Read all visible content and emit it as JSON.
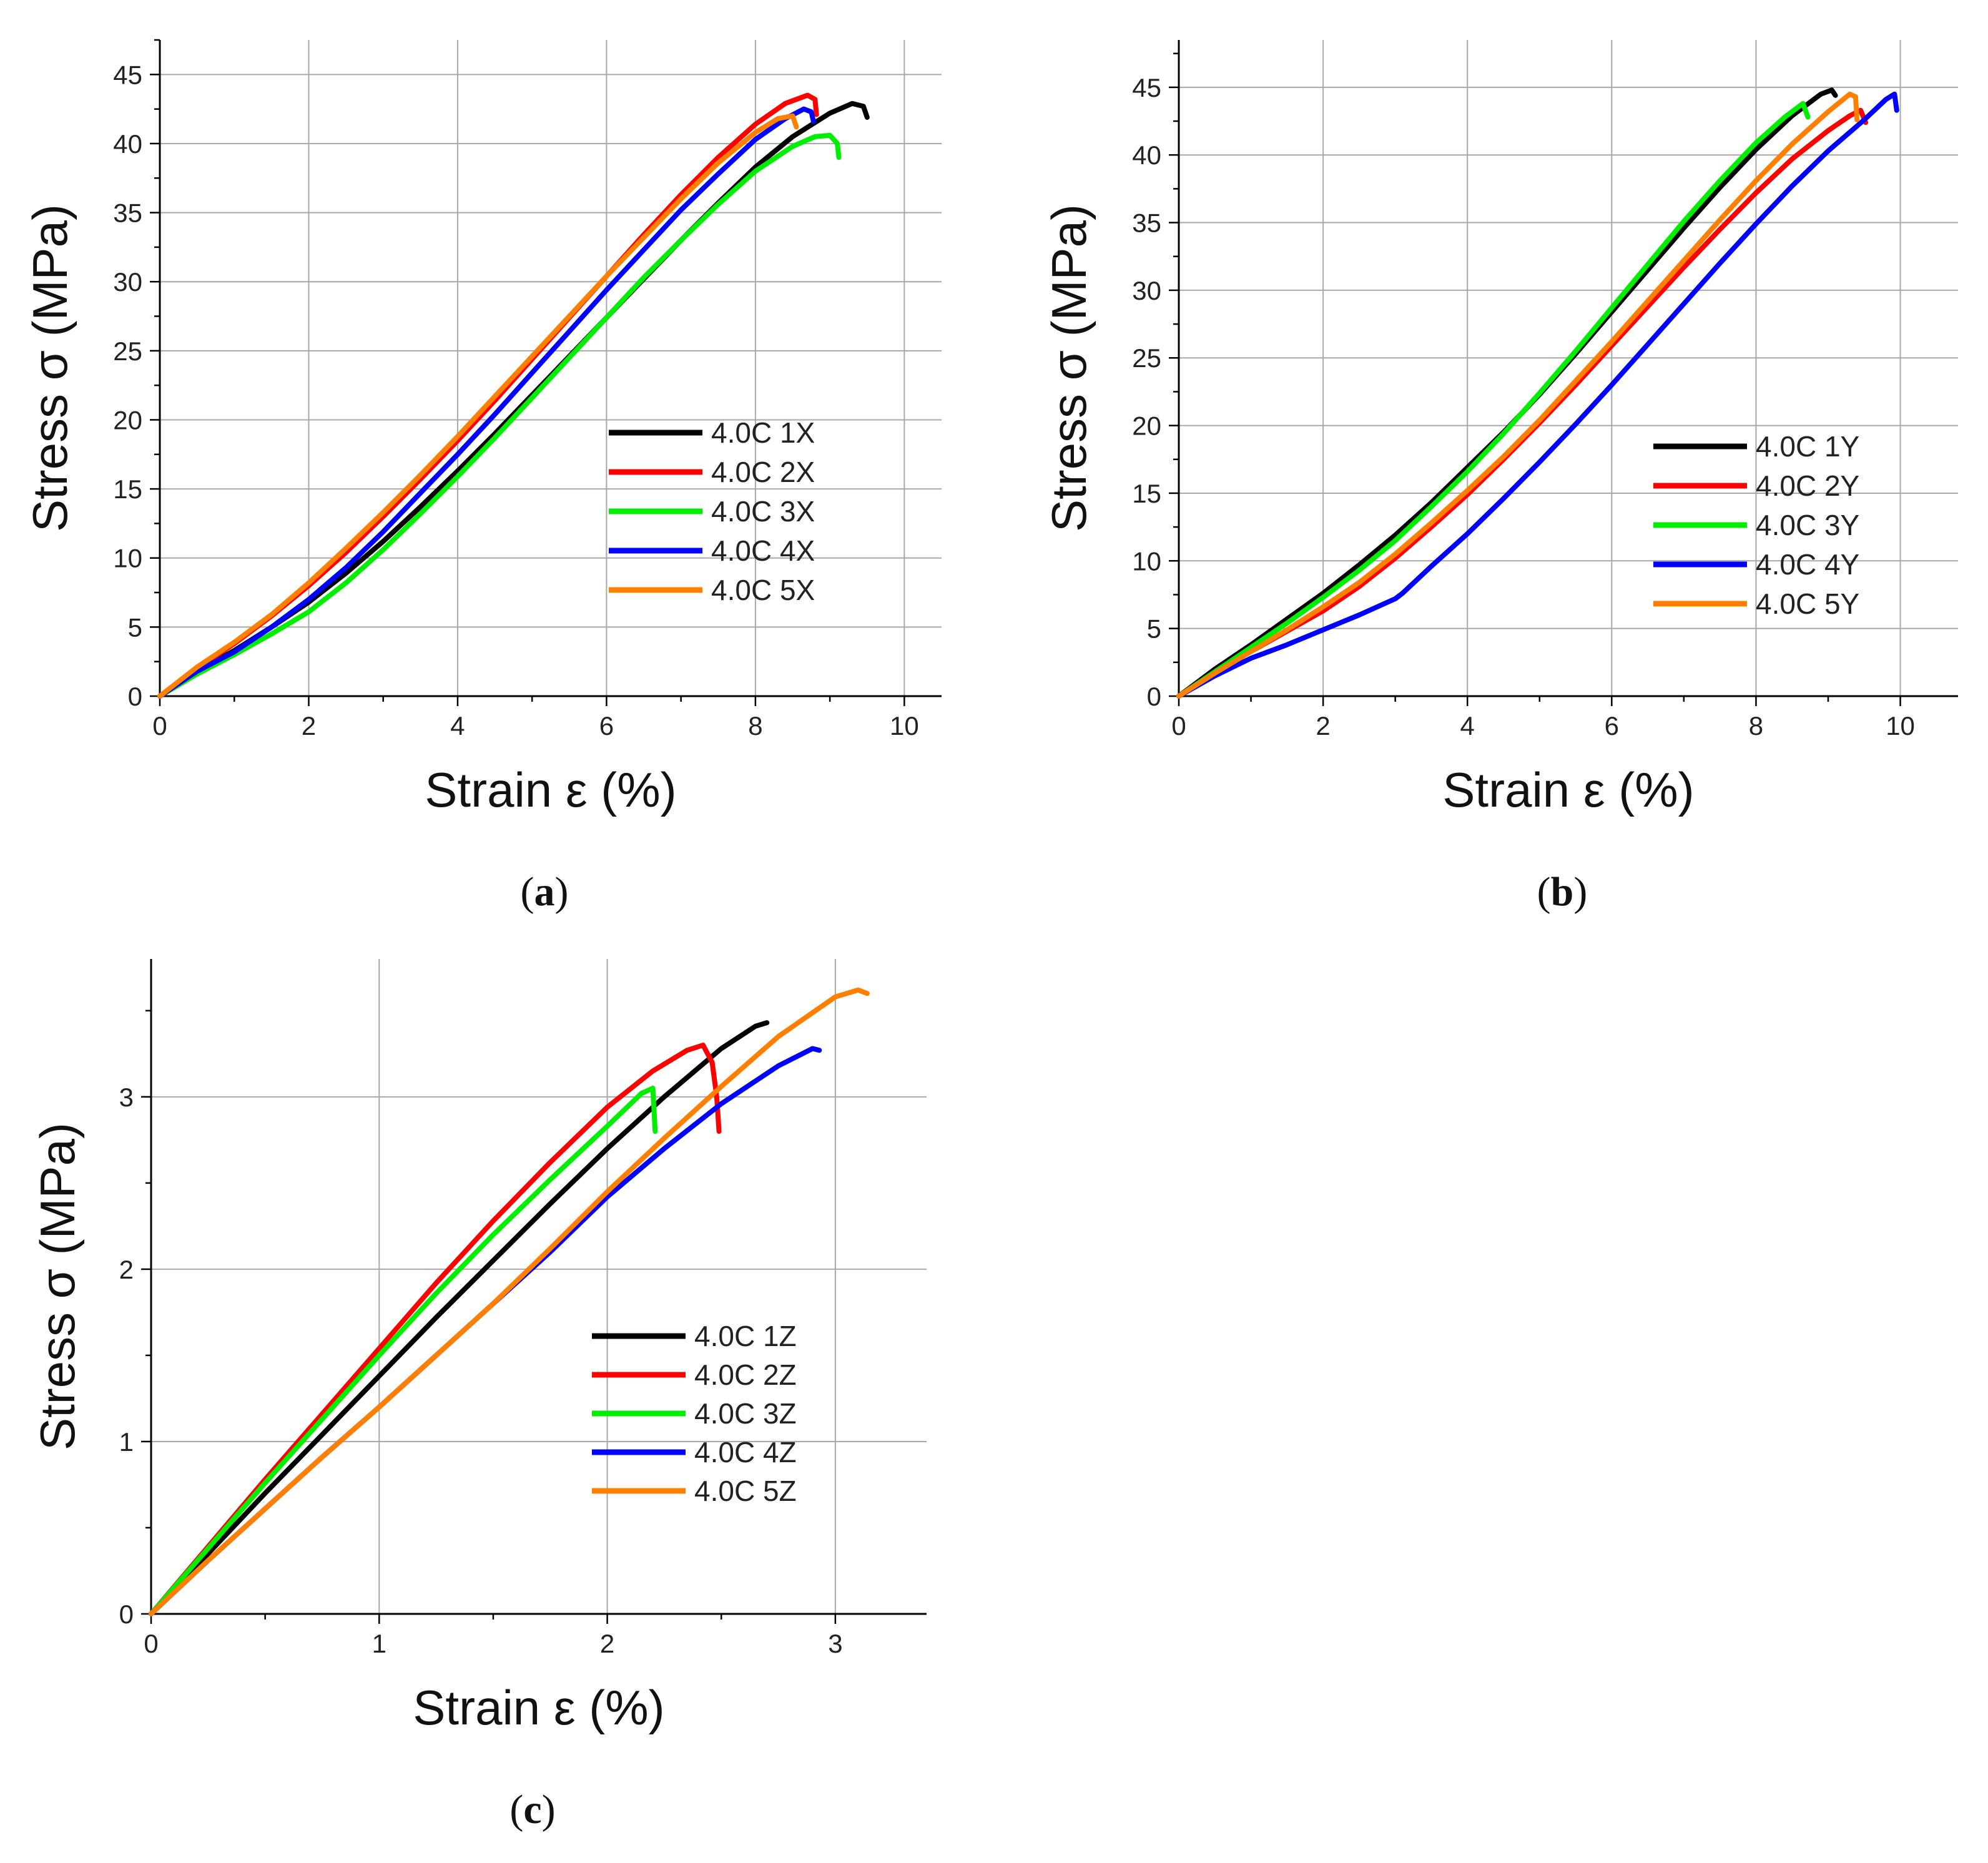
{
  "chart_data": [
    {
      "type": "line",
      "panel_label": "a",
      "xlabel": "Strain ε (%)",
      "ylabel": "Stress σ (MPa)",
      "xlim": [
        0,
        10.5
      ],
      "ylim": [
        0,
        47.5
      ],
      "xticks": [
        0,
        2,
        4,
        6,
        8,
        10
      ],
      "yticks": [
        0,
        5,
        10,
        15,
        20,
        25,
        30,
        35,
        40,
        45
      ],
      "grid": true,
      "legend_position": "center-right",
      "series": [
        {
          "name": "4.0C 1X",
          "color": "#000000",
          "x": [
            0,
            0.5,
            1,
            1.5,
            2,
            2.5,
            3,
            3.5,
            4,
            4.5,
            5,
            5.5,
            6,
            6.5,
            7,
            7.5,
            8,
            8.5,
            9,
            9.3,
            9.45,
            9.5
          ],
          "y": [
            0,
            1.8,
            3.3,
            5.0,
            6.8,
            8.9,
            11.2,
            13.7,
            16.3,
            19.0,
            21.8,
            24.6,
            27.4,
            30.2,
            33.0,
            35.7,
            38.3,
            40.5,
            42.2,
            42.9,
            42.7,
            41.9
          ]
        },
        {
          "name": "4.0C 2X",
          "color": "#ff0000",
          "x": [
            0,
            0.5,
            1,
            1.5,
            2,
            2.5,
            3,
            3.5,
            4,
            4.5,
            5,
            5.5,
            6,
            6.5,
            7,
            7.5,
            8,
            8.4,
            8.7,
            8.8,
            8.82
          ],
          "y": [
            0,
            2.0,
            3.8,
            5.8,
            8.0,
            10.4,
            13.0,
            15.7,
            18.5,
            21.4,
            24.4,
            27.4,
            30.4,
            33.4,
            36.3,
            39.0,
            41.4,
            42.9,
            43.5,
            43.2,
            42.1
          ]
        },
        {
          "name": "4.0C 3X",
          "color": "#00ee00",
          "x": [
            0,
            0.5,
            1,
            1.5,
            2,
            2.5,
            3,
            3.5,
            4,
            4.5,
            5,
            5.5,
            6,
            6.5,
            7,
            7.5,
            8,
            8.5,
            8.8,
            9.0,
            9.1,
            9.12
          ],
          "y": [
            0,
            1.6,
            3.0,
            4.5,
            6.1,
            8.2,
            10.6,
            13.2,
            15.9,
            18.7,
            21.6,
            24.5,
            27.4,
            30.3,
            33.0,
            35.6,
            38.0,
            39.8,
            40.5,
            40.6,
            40.0,
            39.0
          ]
        },
        {
          "name": "4.0C 4X",
          "color": "#0000ff",
          "x": [
            0,
            0.5,
            1,
            1.5,
            2,
            2.5,
            3,
            3.5,
            4,
            4.5,
            5,
            5.5,
            6,
            6.5,
            7,
            7.5,
            8,
            8.4,
            8.65,
            8.75,
            8.78
          ],
          "y": [
            0,
            1.8,
            3.2,
            5.0,
            7.0,
            9.3,
            11.9,
            14.7,
            17.5,
            20.4,
            23.4,
            26.4,
            29.4,
            32.3,
            35.2,
            37.8,
            40.3,
            41.8,
            42.5,
            42.3,
            41.6
          ]
        },
        {
          "name": "4.0C 5X",
          "color": "#ff8000",
          "x": [
            0,
            0.5,
            1,
            1.5,
            2,
            2.5,
            3,
            3.5,
            4,
            4.5,
            5,
            5.5,
            6,
            6.5,
            7,
            7.5,
            8,
            8.3,
            8.5,
            8.55
          ],
          "y": [
            0,
            2.1,
            3.9,
            5.9,
            8.2,
            10.7,
            13.3,
            16.0,
            18.8,
            21.7,
            24.6,
            27.5,
            30.4,
            33.2,
            36.0,
            38.6,
            40.8,
            41.8,
            42.0,
            41.2
          ]
        }
      ]
    },
    {
      "type": "line",
      "panel_label": "b",
      "xlabel": "Strain ε (%)",
      "ylabel": "Stress σ (MPa)",
      "xlim": [
        0,
        10.8
      ],
      "ylim": [
        0,
        48.5
      ],
      "xticks": [
        0,
        2,
        4,
        6,
        8,
        10
      ],
      "yticks": [
        0,
        5,
        10,
        15,
        20,
        25,
        30,
        35,
        40,
        45
      ],
      "grid": true,
      "legend_position": "center-right",
      "series": [
        {
          "name": "4.0C 1Y",
          "color": "#000000",
          "x": [
            0,
            0.5,
            1,
            1.5,
            2,
            2.5,
            3,
            3.5,
            4,
            4.5,
            5,
            5.5,
            6,
            6.5,
            7,
            7.5,
            8,
            8.5,
            8.9,
            9.05,
            9.1
          ],
          "y": [
            0,
            2.0,
            3.8,
            5.7,
            7.6,
            9.7,
            11.9,
            14.3,
            16.9,
            19.5,
            22.3,
            25.3,
            28.4,
            31.5,
            34.6,
            37.6,
            40.4,
            42.9,
            44.5,
            44.8,
            44.4
          ]
        },
        {
          "name": "4.0C 2Y",
          "color": "#ff0000",
          "x": [
            0,
            0.5,
            1,
            1.5,
            2,
            2.5,
            3,
            3.5,
            4,
            4.5,
            5,
            5.5,
            6,
            6.5,
            7,
            7.5,
            8,
            8.5,
            9,
            9.3,
            9.45,
            9.52
          ],
          "y": [
            0,
            1.7,
            3.3,
            4.8,
            6.3,
            8.1,
            10.2,
            12.5,
            14.9,
            17.5,
            20.2,
            23.0,
            25.9,
            28.8,
            31.7,
            34.5,
            37.2,
            39.7,
            41.8,
            42.9,
            43.3,
            42.4
          ]
        },
        {
          "name": "4.0C 3Y",
          "color": "#00ee00",
          "x": [
            0,
            0.5,
            1,
            1.5,
            2,
            2.5,
            3,
            3.5,
            4,
            4.5,
            5,
            5.5,
            6,
            6.5,
            7,
            7.5,
            8,
            8.4,
            8.65,
            8.72
          ],
          "y": [
            0,
            1.8,
            3.6,
            5.4,
            7.3,
            9.3,
            11.5,
            14.0,
            16.6,
            19.4,
            22.4,
            25.5,
            28.7,
            31.9,
            35.1,
            38.1,
            40.9,
            42.8,
            43.8,
            42.8
          ]
        },
        {
          "name": "4.0C 4Y",
          "color": "#0000ff",
          "x": [
            0,
            0.5,
            1,
            1.5,
            2,
            2.5,
            3,
            3.1,
            3.5,
            4,
            4.5,
            5,
            5.5,
            6,
            6.5,
            7,
            7.5,
            8,
            8.5,
            9,
            9.5,
            9.8,
            9.92,
            9.95
          ],
          "y": [
            0,
            1.5,
            2.8,
            3.8,
            4.9,
            6.0,
            7.2,
            7.6,
            9.6,
            12.0,
            14.6,
            17.3,
            20.1,
            23.0,
            26.0,
            29.0,
            32.0,
            34.9,
            37.7,
            40.3,
            42.6,
            44.1,
            44.5,
            43.3
          ]
        },
        {
          "name": "4.0C 5Y",
          "color": "#ff8000",
          "x": [
            0,
            0.5,
            1,
            1.5,
            2,
            2.5,
            3,
            3.5,
            4,
            4.5,
            5,
            5.5,
            6,
            6.5,
            7,
            7.5,
            8,
            8.5,
            9,
            9.3,
            9.38,
            9.4
          ],
          "y": [
            0,
            1.7,
            3.3,
            4.9,
            6.6,
            8.4,
            10.5,
            12.8,
            15.2,
            17.7,
            20.4,
            23.3,
            26.2,
            29.2,
            32.2,
            35.2,
            38.1,
            40.8,
            43.2,
            44.5,
            44.3,
            42.6
          ]
        }
      ]
    },
    {
      "type": "line",
      "panel_label": "c",
      "xlabel": "Strain ε (%)",
      "ylabel": "Stress σ (MPa)",
      "xlim": [
        0,
        3.4
      ],
      "ylim": [
        0,
        3.8
      ],
      "xticks": [
        0,
        1,
        2,
        3
      ],
      "yticks": [
        0,
        1,
        2,
        3
      ],
      "grid": true,
      "legend_position": "center-right",
      "series": [
        {
          "name": "4.0C 1Z",
          "color": "#000000",
          "x": [
            0,
            0.25,
            0.5,
            0.75,
            1.0,
            1.25,
            1.5,
            1.75,
            2.0,
            2.25,
            2.5,
            2.65,
            2.7
          ],
          "y": [
            0,
            0.35,
            0.7,
            1.04,
            1.38,
            1.72,
            2.05,
            2.38,
            2.7,
            3.0,
            3.28,
            3.41,
            3.43
          ]
        },
        {
          "name": "4.0C 2Z",
          "color": "#ff0000",
          "x": [
            0,
            0.25,
            0.5,
            0.75,
            1.0,
            1.25,
            1.5,
            1.75,
            2.0,
            2.2,
            2.35,
            2.42,
            2.46,
            2.48,
            2.49
          ],
          "y": [
            0,
            0.39,
            0.78,
            1.16,
            1.54,
            1.92,
            2.28,
            2.62,
            2.94,
            3.15,
            3.27,
            3.3,
            3.2,
            3.0,
            2.8
          ]
        },
        {
          "name": "4.0C 3Z",
          "color": "#00ee00",
          "x": [
            0,
            0.25,
            0.5,
            0.75,
            1.0,
            1.25,
            1.5,
            1.75,
            2.0,
            2.15,
            2.2,
            2.21
          ],
          "y": [
            0,
            0.38,
            0.76,
            1.13,
            1.5,
            1.86,
            2.2,
            2.52,
            2.83,
            3.02,
            3.05,
            2.8
          ]
        },
        {
          "name": "4.0C 4Z",
          "color": "#0000ff",
          "x": [
            0,
            0.25,
            0.5,
            0.75,
            1.0,
            1.25,
            1.5,
            1.75,
            2.0,
            2.25,
            2.5,
            2.75,
            2.9,
            2.93
          ],
          "y": [
            0,
            0.31,
            0.61,
            0.91,
            1.2,
            1.5,
            1.8,
            2.1,
            2.42,
            2.7,
            2.96,
            3.18,
            3.28,
            3.27
          ]
        },
        {
          "name": "4.0C 5Z",
          "color": "#ff8000",
          "x": [
            0,
            0.25,
            0.5,
            0.75,
            1.0,
            1.25,
            1.5,
            1.75,
            2.0,
            2.25,
            2.5,
            2.75,
            3.0,
            3.1,
            3.14
          ],
          "y": [
            0,
            0.31,
            0.61,
            0.91,
            1.2,
            1.5,
            1.8,
            2.12,
            2.45,
            2.76,
            3.06,
            3.35,
            3.58,
            3.62,
            3.6
          ]
        }
      ]
    }
  ]
}
